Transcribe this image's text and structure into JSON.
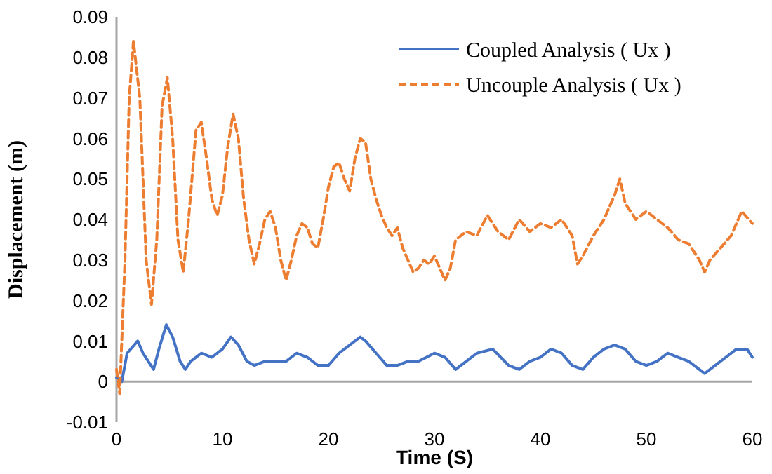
{
  "chart_data": {
    "type": "line",
    "xlabel": "Time (S)",
    "ylabel": "Displacement (m)",
    "xlim": [
      0,
      60
    ],
    "xticks": [
      0,
      10,
      20,
      30,
      40,
      50,
      60
    ],
    "ylim": [
      -0.01,
      0.09
    ],
    "yticks": [
      -0.01,
      0,
      0.01,
      0.02,
      0.03,
      0.04,
      0.05,
      0.06,
      0.07,
      0.08,
      0.09
    ],
    "grid": false,
    "legend": "top right",
    "marker": "none",
    "series": [
      {
        "name": "Coupled Analysis ( Ux )",
        "color": "#4472c4",
        "line_style": "solid",
        "x": [
          0,
          0.5,
          1,
          2,
          2.5,
          3,
          3.5,
          4,
          4.7,
          5.3,
          6,
          6.5,
          7,
          8,
          9,
          10,
          10.8,
          11.5,
          12.3,
          13,
          14,
          15,
          16,
          17,
          18,
          19,
          20,
          21,
          22,
          23,
          23.5,
          24.5,
          25.5,
          26.5,
          27.5,
          28.5,
          30,
          31,
          32,
          33,
          34,
          35.5,
          37,
          38,
          39,
          40,
          41,
          42,
          43,
          44,
          45,
          46,
          47,
          48,
          49,
          50,
          51,
          52,
          53,
          54,
          55,
          55.5,
          56.5,
          57.5,
          58.5,
          59.5,
          60
        ],
        "values": [
          0.001,
          0,
          0.007,
          0.01,
          0.007,
          0.005,
          0.003,
          0.008,
          0.014,
          0.011,
          0.005,
          0.003,
          0.005,
          0.007,
          0.006,
          0.008,
          0.011,
          0.009,
          0.005,
          0.004,
          0.005,
          0.005,
          0.005,
          0.007,
          0.006,
          0.004,
          0.004,
          0.007,
          0.009,
          0.011,
          0.01,
          0.007,
          0.004,
          0.004,
          0.005,
          0.005,
          0.007,
          0.006,
          0.003,
          0.005,
          0.007,
          0.008,
          0.004,
          0.003,
          0.005,
          0.006,
          0.008,
          0.007,
          0.004,
          0.003,
          0.006,
          0.008,
          0.009,
          0.008,
          0.005,
          0.004,
          0.005,
          0.007,
          0.006,
          0.005,
          0.003,
          0.002,
          0.004,
          0.006,
          0.008,
          0.008,
          0.006
        ]
      },
      {
        "name": "Uncouple Analysis ( Ux )",
        "color": "#ed7d31",
        "line_style": "dashed",
        "x": [
          0,
          0.3,
          0.8,
          1.2,
          1.6,
          2.2,
          2.8,
          3.3,
          3.8,
          4.3,
          4.8,
          5.3,
          5.8,
          6.3,
          6.8,
          7.5,
          8,
          8.5,
          9,
          9.5,
          10,
          10.5,
          11,
          11.5,
          12,
          12.5,
          13,
          13.5,
          14,
          14.5,
          15,
          15.5,
          16,
          16.5,
          17,
          17.5,
          18,
          18.5,
          19,
          19.5,
          20,
          20.5,
          21,
          21.5,
          22,
          22.5,
          23,
          23.5,
          24,
          24.5,
          25,
          25.5,
          26,
          26.5,
          27,
          27.5,
          28,
          28.5,
          29,
          29.5,
          30,
          30.5,
          31,
          31.5,
          32,
          33,
          34,
          35,
          36,
          37,
          38,
          39,
          40,
          41,
          42,
          43,
          43.5,
          44,
          45,
          46,
          47,
          47.5,
          48,
          49,
          50,
          51,
          52,
          53,
          54,
          55,
          55.5,
          56,
          57,
          58,
          59,
          60
        ],
        "values": [
          0.003,
          -0.003,
          0.03,
          0.07,
          0.084,
          0.07,
          0.03,
          0.019,
          0.035,
          0.068,
          0.075,
          0.06,
          0.035,
          0.027,
          0.04,
          0.062,
          0.064,
          0.055,
          0.045,
          0.041,
          0.046,
          0.058,
          0.066,
          0.06,
          0.045,
          0.035,
          0.029,
          0.034,
          0.04,
          0.042,
          0.038,
          0.03,
          0.025,
          0.03,
          0.036,
          0.039,
          0.038,
          0.034,
          0.033,
          0.04,
          0.048,
          0.053,
          0.054,
          0.05,
          0.047,
          0.055,
          0.06,
          0.059,
          0.05,
          0.045,
          0.041,
          0.038,
          0.036,
          0.038,
          0.033,
          0.03,
          0.027,
          0.028,
          0.03,
          0.029,
          0.031,
          0.028,
          0.025,
          0.028,
          0.035,
          0.037,
          0.036,
          0.041,
          0.037,
          0.035,
          0.04,
          0.037,
          0.039,
          0.038,
          0.04,
          0.036,
          0.029,
          0.031,
          0.036,
          0.04,
          0.046,
          0.05,
          0.044,
          0.04,
          0.042,
          0.04,
          0.038,
          0.035,
          0.034,
          0.03,
          0.027,
          0.03,
          0.033,
          0.036,
          0.042,
          0.039
        ]
      }
    ]
  }
}
